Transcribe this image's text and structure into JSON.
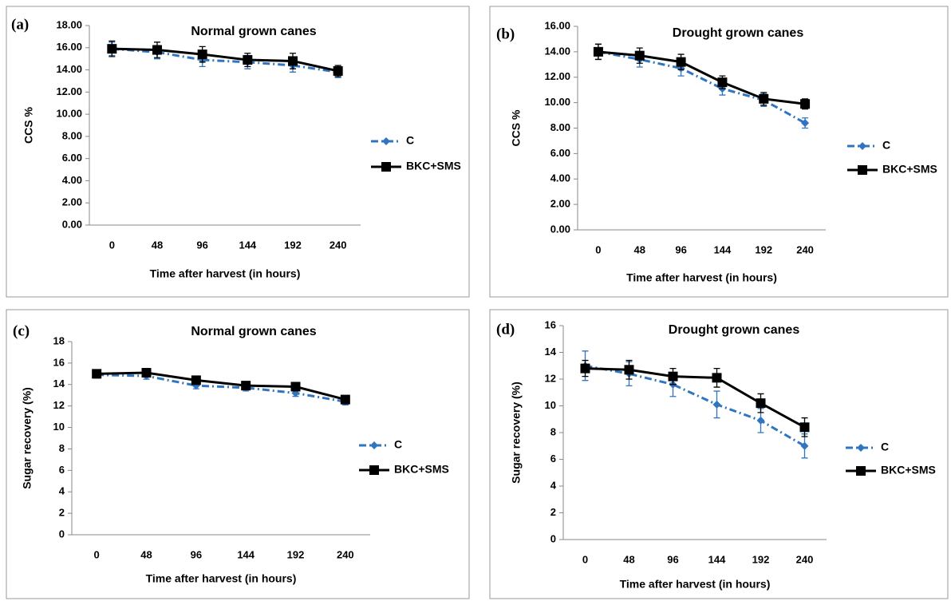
{
  "chart_data": [
    {
      "type": "line",
      "panel": "(a)",
      "title": "Normal grown canes",
      "x_label": "Time after harvest (in hours)",
      "y_label": "CCS %",
      "categories": [
        "0",
        "48",
        "96",
        "144",
        "192",
        "240"
      ],
      "series": [
        {
          "name": "C",
          "color": "#2f75c0",
          "values": [
            15.9,
            15.6,
            14.9,
            14.7,
            14.4,
            13.8
          ],
          "errors": [
            0.6,
            0.6,
            0.6,
            0.6,
            0.6,
            0.5
          ]
        },
        {
          "name": "BKC+SMS",
          "color": "#000000",
          "values": [
            15.9,
            15.8,
            15.4,
            14.9,
            14.8,
            13.9
          ],
          "errors": [
            0.7,
            0.7,
            0.7,
            0.6,
            0.7,
            0.5
          ]
        }
      ],
      "ylim": [
        0,
        18
      ],
      "yticks": [
        {
          "value": 0,
          "label": "0.00"
        },
        {
          "value": 2,
          "label": "2.00"
        },
        {
          "value": 4,
          "label": "4.00"
        },
        {
          "value": 6,
          "label": "6.00"
        },
        {
          "value": 8,
          "label": "8.00"
        },
        {
          "value": 10,
          "label": "10.00"
        },
        {
          "value": 12,
          "label": "12.00"
        },
        {
          "value": 14,
          "label": "14.00"
        },
        {
          "value": 16,
          "label": "16.00"
        },
        {
          "value": 18,
          "label": "18.00"
        }
      ]
    },
    {
      "type": "line",
      "panel": "(b)",
      "title": "Drought grown canes",
      "x_label": "Time after harvest (in hours)",
      "y_label": "CCS %",
      "categories": [
        "0",
        "48",
        "96",
        "144",
        "192",
        "240"
      ],
      "series": [
        {
          "name": "C",
          "color": "#2f75c0",
          "values": [
            14.0,
            13.4,
            12.7,
            11.1,
            10.2,
            8.4
          ],
          "errors": [
            0.6,
            0.6,
            0.6,
            0.5,
            0.5,
            0.4
          ]
        },
        {
          "name": "BKC+SMS",
          "color": "#000000",
          "values": [
            14.0,
            13.7,
            13.2,
            11.6,
            10.3,
            9.9
          ],
          "errors": [
            0.6,
            0.6,
            0.6,
            0.5,
            0.5,
            0.4
          ]
        }
      ],
      "ylim": [
        0,
        16
      ],
      "yticks": [
        {
          "value": 0,
          "label": "0.00"
        },
        {
          "value": 2,
          "label": "2.00"
        },
        {
          "value": 4,
          "label": "4.00"
        },
        {
          "value": 6,
          "label": "6.00"
        },
        {
          "value": 8,
          "label": "8.00"
        },
        {
          "value": 10,
          "label": "10.00"
        },
        {
          "value": 12,
          "label": "12.00"
        },
        {
          "value": 14,
          "label": "14.00"
        },
        {
          "value": 16,
          "label": "16.00"
        }
      ]
    },
    {
      "type": "line",
      "panel": "(c)",
      "title": "Normal grown canes",
      "x_label": "Time after harvest (in hours)",
      "y_label": "Sugar recovery (%)",
      "categories": [
        "0",
        "48",
        "96",
        "144",
        "192",
        "240"
      ],
      "series": [
        {
          "name": "C",
          "color": "#2f75c0",
          "values": [
            14.9,
            14.8,
            13.9,
            13.7,
            13.2,
            12.4
          ],
          "errors": [
            0.3,
            0.3,
            0.3,
            0.3,
            0.3,
            0.3
          ]
        },
        {
          "name": "BKC+SMS",
          "color": "#000000",
          "values": [
            15.0,
            15.1,
            14.4,
            13.9,
            13.8,
            12.6
          ],
          "errors": [
            0.3,
            0.3,
            0.3,
            0.3,
            0.3,
            0.3
          ]
        }
      ],
      "ylim": [
        0,
        18
      ],
      "yticks": [
        0,
        2,
        4,
        6,
        8,
        10,
        12,
        14,
        16,
        18
      ]
    },
    {
      "type": "line",
      "panel": "(d)",
      "title": "Drought grown canes",
      "x_label": "Time after harvest (in hours)",
      "y_label": "Sugar recovery (%)",
      "categories": [
        "0",
        "48",
        "96",
        "144",
        "192",
        "240"
      ],
      "series": [
        {
          "name": "C",
          "color": "#2f75c0",
          "values": [
            13.0,
            12.4,
            11.6,
            10.1,
            8.9,
            7.0
          ],
          "errors": [
            1.1,
            0.9,
            0.9,
            1.0,
            0.9,
            0.9
          ]
        },
        {
          "name": "BKC+SMS",
          "color": "#000000",
          "values": [
            12.8,
            12.7,
            12.2,
            12.1,
            10.2,
            8.4
          ],
          "errors": [
            0.6,
            0.7,
            0.6,
            0.7,
            0.7,
            0.7
          ]
        }
      ],
      "ylim": [
        0,
        16
      ],
      "yticks": [
        0,
        2,
        4,
        6,
        8,
        10,
        12,
        14,
        16
      ]
    }
  ]
}
